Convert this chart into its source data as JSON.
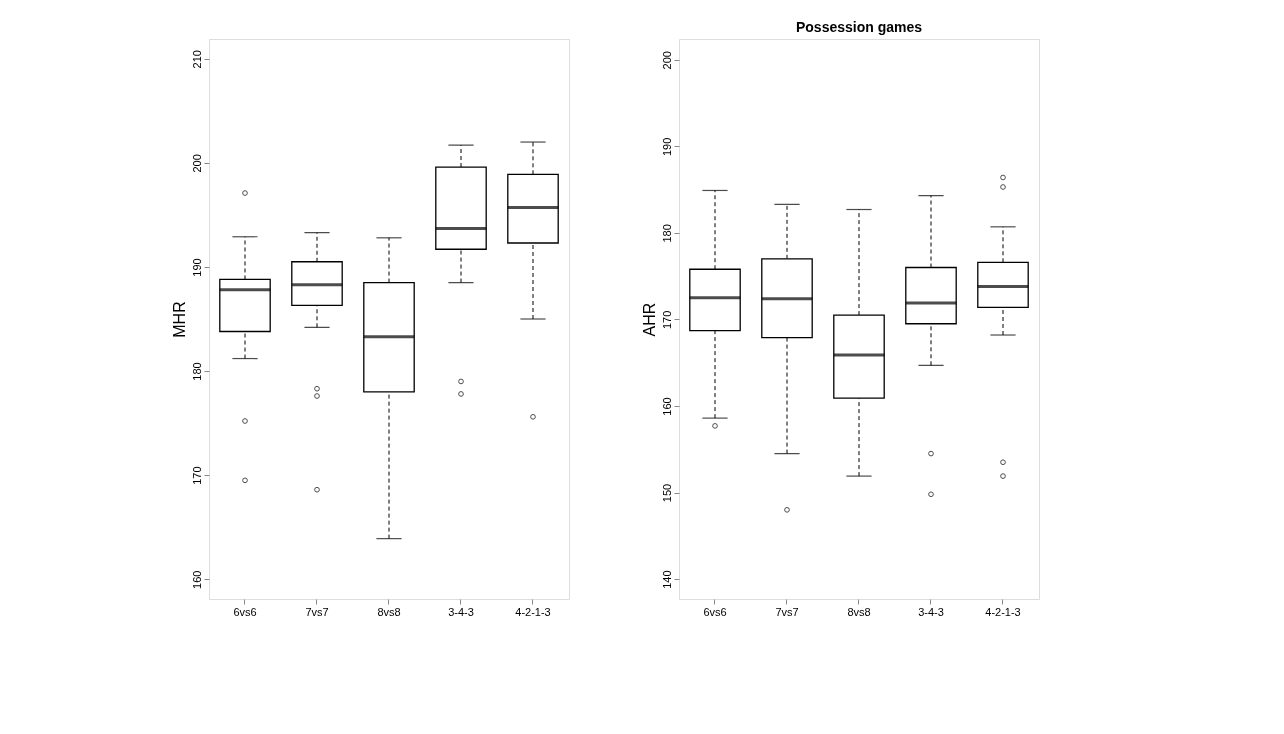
{
  "chart_data": [
    {
      "type": "box",
      "ylabel": "MHR",
      "categories": [
        "6vs6",
        "7vs7",
        "8vs8",
        "3-4-3",
        "4-2-1-3"
      ],
      "ylim": [
        158.1,
        211.9
      ],
      "yticks": [
        160,
        170,
        180,
        190,
        200,
        210
      ],
      "grid": false,
      "boxes": [
        {
          "low": 181.2,
          "q1": 183.8,
          "median": 187.8,
          "q3": 188.8,
          "high": 192.9,
          "outliers": [
            197.1,
            175.2,
            169.5
          ]
        },
        {
          "low": 184.2,
          "q1": 186.3,
          "median": 188.3,
          "q3": 190.5,
          "high": 193.3,
          "outliers": [
            178.3,
            177.6,
            168.6
          ]
        },
        {
          "low": 163.9,
          "q1": 178.0,
          "median": 183.3,
          "q3": 188.5,
          "high": 192.8
        },
        {
          "low": 188.5,
          "q1": 191.7,
          "median": 193.7,
          "q3": 199.6,
          "high": 201.7,
          "outliers": [
            179.0,
            177.8
          ]
        },
        {
          "low": 185.0,
          "q1": 192.3,
          "median": 195.7,
          "q3": 198.9,
          "high": 202.0,
          "outliers": [
            175.6
          ]
        }
      ]
    },
    {
      "type": "box",
      "title": "Possession games",
      "ylabel": "AHR",
      "categories": [
        "6vs6",
        "7vs7",
        "8vs8",
        "3-4-3",
        "4-2-1-3"
      ],
      "ylim": [
        137.7,
        202.4
      ],
      "yticks": [
        140,
        150,
        160,
        170,
        180,
        190,
        200
      ],
      "grid": false,
      "boxes": [
        {
          "low": 158.6,
          "q1": 168.7,
          "median": 172.5,
          "q3": 175.8,
          "high": 184.9,
          "outliers": [
            157.7
          ]
        },
        {
          "low": 154.5,
          "q1": 167.9,
          "median": 172.4,
          "q3": 177.0,
          "high": 183.3,
          "outliers": [
            148.0
          ]
        },
        {
          "low": 151.9,
          "q1": 160.9,
          "median": 165.9,
          "q3": 170.5,
          "high": 182.7
        },
        {
          "low": 164.7,
          "q1": 169.5,
          "median": 171.9,
          "q3": 176.0,
          "high": 184.3,
          "outliers": [
            154.5,
            149.8
          ]
        },
        {
          "low": 168.2,
          "q1": 171.4,
          "median": 173.8,
          "q3": 176.6,
          "high": 180.7,
          "outliers": [
            186.4,
            185.3,
            153.5,
            151.9
          ]
        }
      ]
    }
  ]
}
